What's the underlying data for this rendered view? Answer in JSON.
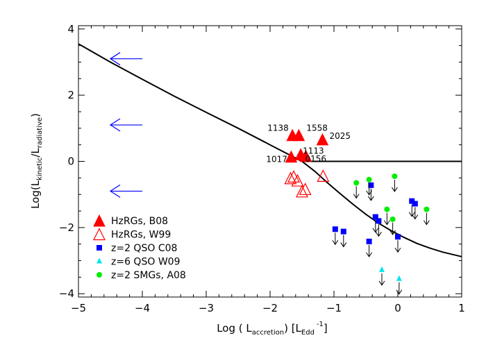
{
  "chart_data": {
    "type": "scatter",
    "title": "",
    "xlabel": {
      "prefix": "Log ( L",
      "sub": "accretion",
      "mid": ")   [L",
      "sub2": "Edd",
      "sup": "-1",
      "suffix": "]"
    },
    "ylabel": {
      "prefix": "Log(L",
      "sub": "kinetic",
      "mid": "/L",
      "sub2": "radiative",
      "suffix": ")"
    },
    "xlim": [
      -5,
      1
    ],
    "ylim": [
      -4.1,
      4.1
    ],
    "xticks": [
      -5,
      -4,
      -3,
      -2,
      -1,
      0,
      1
    ],
    "yticks": [
      -4,
      -2,
      0,
      2,
      4
    ],
    "xtick_labels": [
      "−5",
      "−4",
      "−3",
      "−2",
      "−1",
      "0",
      "1"
    ],
    "ytick_labels": [
      "−4",
      "−2",
      "0",
      "2",
      "4"
    ],
    "grid": false,
    "legend_position": "bottom-left",
    "colors": {
      "hzrg": "#ff0000",
      "qso_c08": "#0000ff",
      "qso_w09": "#00e5ee",
      "smg": "#00ee00",
      "arrow": "#0000ff"
    },
    "curve_main": {
      "x": [
        -5,
        -4.5,
        -4,
        -3.5,
        -3,
        -2.5,
        -2,
        -1.7,
        -1.5,
        -1.3,
        -1.1,
        -0.9,
        -0.7,
        -0.5,
        -0.3,
        -0.1,
        0.1,
        0.3,
        0.5,
        0.7,
        1.0
      ],
      "y": [
        3.55,
        3.0,
        2.48,
        1.97,
        1.48,
        1.0,
        0.5,
        0.2,
        0.0,
        -0.3,
        -0.65,
        -0.98,
        -1.3,
        -1.6,
        -1.87,
        -2.1,
        -2.3,
        -2.48,
        -2.62,
        -2.74,
        -2.88
      ]
    },
    "curve_flat": {
      "x": [
        -1.5,
        1.0
      ],
      "y": [
        0.0,
        0.0
      ]
    },
    "left_arrows": [
      {
        "x0": -4.5,
        "x1": -4.0,
        "y": 3.1
      },
      {
        "x0": -4.5,
        "x1": -4.0,
        "y": 1.1
      },
      {
        "x0": -4.5,
        "x1": -4.0,
        "y": -0.9
      }
    ],
    "series": [
      {
        "name": "HzRGs, B08",
        "marker": "triangle-filled",
        "color": "#ff0000",
        "points": [
          {
            "x": -1.65,
            "y": 0.75,
            "label": "1138"
          },
          {
            "x": -1.55,
            "y": 0.75,
            "label": "1558"
          },
          {
            "x": -1.18,
            "y": 0.62,
            "label": "2025"
          },
          {
            "x": -1.67,
            "y": 0.1,
            "label": "1017"
          },
          {
            "x": -1.52,
            "y": 0.17,
            "label": "1113"
          },
          {
            "x": -1.44,
            "y": 0.12,
            "label": "0156"
          }
        ]
      },
      {
        "name": "HzRGs, W99",
        "marker": "triangle-open",
        "color": "#ff0000",
        "points": [
          {
            "x": -1.68,
            "y": -0.55
          },
          {
            "x": -1.63,
            "y": -0.5
          },
          {
            "x": -1.57,
            "y": -0.62
          },
          {
            "x": -1.5,
            "y": -0.95
          },
          {
            "x": -1.45,
            "y": -0.88
          },
          {
            "x": -1.17,
            "y": -0.48
          }
        ]
      },
      {
        "name": "z=2 QSO C08",
        "marker": "square",
        "color": "#0000ff",
        "points": [
          {
            "x": -0.98,
            "y": -2.05
          },
          {
            "x": -0.85,
            "y": -2.12
          },
          {
            "x": -0.45,
            "y": -2.42
          },
          {
            "x": -0.42,
            "y": -0.72
          },
          {
            "x": -0.35,
            "y": -1.68
          },
          {
            "x": -0.3,
            "y": -1.8
          },
          {
            "x": 0.0,
            "y": -2.28
          },
          {
            "x": 0.22,
            "y": -1.2
          },
          {
            "x": 0.27,
            "y": -1.28
          }
        ]
      },
      {
        "name": "z=6 QSO W09",
        "marker": "triangle-small",
        "color": "#00e5ee",
        "points": [
          {
            "x": -0.25,
            "y": -3.28
          },
          {
            "x": 0.02,
            "y": -3.55
          }
        ]
      },
      {
        "name": "z=2 SMGs, A08",
        "marker": "circle",
        "color": "#00ee00",
        "points": [
          {
            "x": -0.65,
            "y": -0.65
          },
          {
            "x": -0.45,
            "y": -0.55
          },
          {
            "x": -0.17,
            "y": -1.45
          },
          {
            "x": -0.05,
            "y": -0.45
          },
          {
            "x": -0.08,
            "y": -1.75
          },
          {
            "x": 0.45,
            "y": -1.45
          }
        ]
      }
    ]
  }
}
